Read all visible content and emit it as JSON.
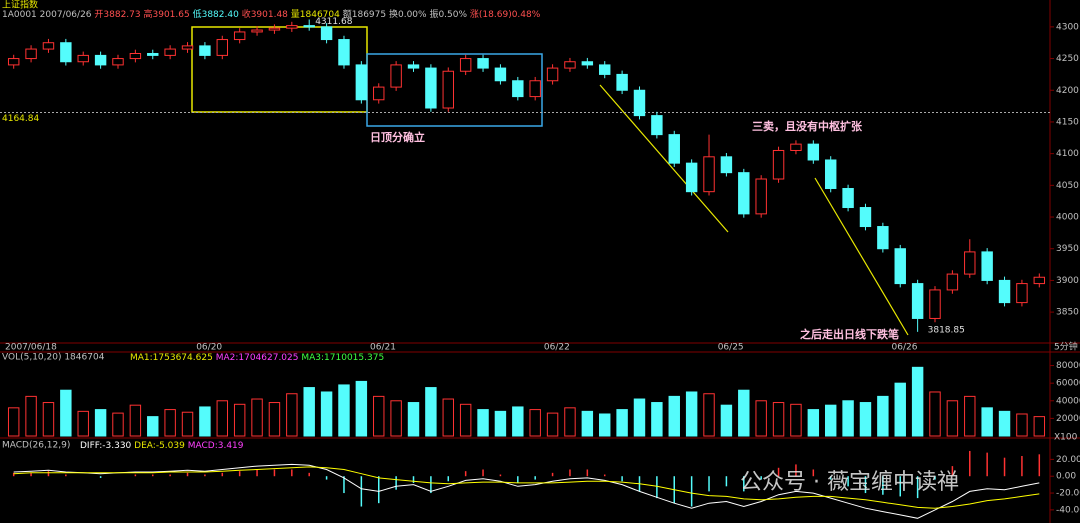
{
  "header": {
    "name": "上证指数",
    "quote": [
      "1A0001 2007/06/26",
      "开3882.73",
      "高3901.65",
      "低3882.40",
      "收3901.48",
      "量1846704",
      "额186975",
      "换0.00%",
      "振0.50%",
      "涨(18.69)0.48%"
    ]
  },
  "watermark": "公众号 · 薇宝缠中读禅",
  "chart_data": [
    {
      "type": "candlestick",
      "categories": [
        "2007/06/18",
        null,
        null,
        null,
        null,
        null,
        null,
        null,
        null,
        null,
        null,
        "06/20",
        null,
        null,
        null,
        null,
        null,
        null,
        null,
        null,
        null,
        "06/21",
        null,
        null,
        null,
        null,
        null,
        null,
        null,
        null,
        null,
        "06/22",
        null,
        null,
        null,
        null,
        null,
        null,
        null,
        null,
        null,
        "06/25",
        null,
        null,
        null,
        null,
        null,
        null,
        null,
        null,
        null,
        "06/26",
        null,
        null,
        null,
        null,
        null,
        null,
        null,
        null
      ],
      "open": [
        4240,
        4250,
        4265,
        4275,
        4245,
        4255,
        4240,
        4250,
        4258,
        4255,
        4265,
        4270,
        4255,
        4280,
        4292,
        4295,
        4298,
        4302,
        4300,
        4280,
        4240,
        4185,
        4205,
        4240,
        4235,
        4172,
        4230,
        4250,
        4235,
        4215,
        4190,
        4215,
        4235,
        4245,
        4240,
        4225,
        4200,
        4160,
        4130,
        4085,
        4040,
        4095,
        4070,
        4005,
        4060,
        4105,
        4115,
        4090,
        4045,
        4015,
        3985,
        3950,
        3895,
        3840,
        3885,
        3910,
        3945,
        3900,
        3865,
        3895
      ],
      "high": [
        4256,
        4271,
        4281,
        4281,
        4261,
        4261,
        4256,
        4264,
        4264,
        4271,
        4276,
        4276,
        4286,
        4298,
        4301,
        4304,
        4308,
        4311.68,
        4306,
        4286,
        4246,
        4211,
        4246,
        4246,
        4241,
        4236,
        4256,
        4256,
        4241,
        4221,
        4221,
        4241,
        4251,
        4251,
        4246,
        4231,
        4206,
        4166,
        4136,
        4091,
        4130,
        4101,
        4076,
        4066,
        4111,
        4121,
        4121,
        4096,
        4051,
        4021,
        3991,
        3956,
        3901,
        3891,
        3916,
        3965,
        3951,
        3906,
        3901,
        3911
      ],
      "low": [
        4234,
        4244,
        4259,
        4239,
        4239,
        4234,
        4234,
        4244,
        4249,
        4249,
        4259,
        4249,
        4249,
        4274,
        4286,
        4289,
        4292,
        4294,
        4274,
        4234,
        4179,
        4179,
        4199,
        4229,
        4166,
        4166,
        4224,
        4229,
        4209,
        4184,
        4184,
        4209,
        4229,
        4234,
        4219,
        4194,
        4154,
        4124,
        4079,
        4034,
        4034,
        4064,
        3999,
        3999,
        4054,
        4099,
        4084,
        4039,
        4009,
        3979,
        3944,
        3889,
        3818.85,
        3834,
        3879,
        3904,
        3894,
        3859,
        3859,
        3889
      ],
      "close": [
        4250,
        4265,
        4275,
        4245,
        4255,
        4240,
        4250,
        4258,
        4255,
        4265,
        4270,
        4255,
        4280,
        4292,
        4295,
        4298,
        4302,
        4300,
        4280,
        4240,
        4185,
        4205,
        4240,
        4235,
        4172,
        4230,
        4250,
        4235,
        4215,
        4190,
        4215,
        4235,
        4245,
        4240,
        4225,
        4200,
        4160,
        4130,
        4085,
        4040,
        4095,
        4070,
        4005,
        4060,
        4105,
        4115,
        4090,
        4045,
        4015,
        3985,
        3950,
        3895,
        3840,
        3885,
        3910,
        3945,
        3900,
        3865,
        3895,
        3905
      ],
      "up_color": "#ff3232",
      "down_color": "#54fcfc",
      "ylim": [
        3806,
        4314
      ],
      "yticks": [
        3850,
        3900,
        3950,
        4000,
        4050,
        4100,
        4150,
        4200,
        4250,
        4300
      ],
      "level": 4164.84,
      "period": "5分钟",
      "annotations": [
        "日顶分确立",
        "三卖，且没有中枢扩张",
        "之后走出日线下跌笔"
      ]
    },
    {
      "type": "bar",
      "title": "VOL(5,10,20) 1846704",
      "indicators": [
        "MA1:1753674.625",
        "MA2:1704627.025",
        "MA3:1710015.375"
      ],
      "values": [
        32000,
        45000,
        38000,
        52000,
        28000,
        30000,
        26000,
        35000,
        22000,
        30000,
        27000,
        33000,
        40000,
        36000,
        42000,
        38000,
        48000,
        55000,
        50000,
        58000,
        62000,
        45000,
        40000,
        38000,
        55000,
        42000,
        36000,
        30000,
        28000,
        33000,
        30000,
        26000,
        32000,
        28000,
        25000,
        30000,
        42000,
        38000,
        45000,
        50000,
        48000,
        35000,
        52000,
        40000,
        38000,
        36000,
        30000,
        35000,
        40000,
        38000,
        45000,
        60000,
        78000,
        50000,
        40000,
        45000,
        32000,
        28000,
        25000,
        22000
      ],
      "ylim": [
        0,
        92000
      ],
      "yticks": [
        20000,
        40000,
        60000,
        80000
      ],
      "unit_label": "X100"
    },
    {
      "type": "macd",
      "title": "MACD(26,12,9)",
      "indicators": [
        "DIFF:-3.330",
        "DEA:-5.039",
        "MACD:3.419"
      ],
      "values": [
        4,
        4,
        6,
        2,
        0,
        -2,
        0,
        2,
        2,
        2,
        4,
        2,
        4,
        6,
        8,
        8,
        8,
        4,
        -4,
        -20,
        -36,
        -32,
        -16,
        -8,
        -20,
        -6,
        6,
        8,
        2,
        -8,
        -4,
        4,
        8,
        8,
        2,
        -6,
        -18,
        -26,
        -32,
        -36,
        -18,
        -12,
        -18,
        -4,
        10,
        14,
        8,
        -4,
        -12,
        -20,
        -22,
        -24,
        -26,
        -4,
        12,
        30,
        28,
        22,
        24,
        26
      ],
      "series": [
        {
          "name": "DIFF",
          "color": "#ffffff",
          "values": [
            5,
            6,
            7,
            5,
            4,
            3,
            4,
            5,
            5,
            6,
            7,
            6,
            8,
            10,
            12,
            13,
            14,
            13,
            8,
            -2,
            -15,
            -18,
            -12,
            -10,
            -18,
            -12,
            -5,
            -3,
            -6,
            -12,
            -10,
            -6,
            -3,
            -2,
            -5,
            -10,
            -18,
            -25,
            -32,
            -38,
            -32,
            -30,
            -36,
            -30,
            -22,
            -18,
            -20,
            -26,
            -32,
            -38,
            -42,
            -46,
            -50,
            -40,
            -30,
            -18,
            -15,
            -16,
            -12,
            -8
          ]
        },
        {
          "name": "DEA",
          "color": "#ffff00",
          "values": [
            3,
            4,
            4,
            4,
            4,
            4,
            4,
            4,
            4,
            5,
            5,
            5,
            6,
            7,
            8,
            9,
            10,
            11,
            10,
            8,
            3,
            -2,
            -4,
            -6,
            -8,
            -9,
            -8,
            -7,
            -7,
            -8,
            -8,
            -8,
            -7,
            -6,
            -6,
            -7,
            -9,
            -12,
            -16,
            -20,
            -23,
            -24,
            -27,
            -28,
            -27,
            -25,
            -24,
            -24,
            -26,
            -28,
            -31,
            -34,
            -37,
            -38,
            -36,
            -33,
            -29,
            -27,
            -24,
            -21
          ]
        }
      ],
      "ylim": [
        -52,
        43
      ],
      "yticks": [
        {
          "value": -40,
          "label": "-40.00"
        },
        {
          "value": -20,
          "label": "-20.00"
        },
        {
          "value": 0,
          "label": "0.00"
        },
        {
          "value": 20,
          "label": "20.00"
        }
      ]
    }
  ]
}
